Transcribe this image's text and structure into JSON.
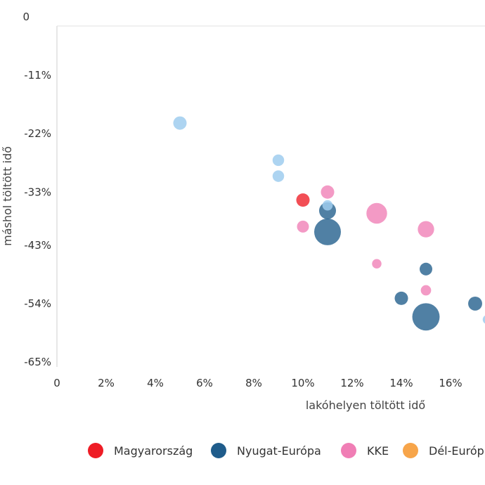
{
  "chart_data": {
    "type": "scatter",
    "title": "",
    "xlabel": "lakóhelyen töltött idő",
    "ylabel": "máshol töltött idő",
    "xlim": [
      0,
      17.5
    ],
    "ylim": [
      -0.66,
      0
    ],
    "x_ticks": [
      0,
      2,
      4,
      6,
      8,
      10,
      12,
      14,
      16
    ],
    "x_tick_labels": [
      "0",
      "2%",
      "4%",
      "6%",
      "8%",
      "10%",
      "12%",
      "14%",
      "16%"
    ],
    "y_ticks": [
      0,
      -0.11,
      -0.22,
      -0.33,
      -0.43,
      -0.54,
      -0.65
    ],
    "y_tick_labels": [
      "0",
      "-11%",
      "-22%",
      "-33%",
      "-43%",
      "-54%",
      "-65%"
    ],
    "grid": false,
    "legend_position": "bottom",
    "series": [
      {
        "name": "Magyarország",
        "color": "#ee1c25",
        "points": [
          {
            "x": 10,
            "y": -0.345,
            "size": 1
          }
        ]
      },
      {
        "name": "Nyugat-Európa",
        "color": "#1f5c8b",
        "points": [
          {
            "x": 11,
            "y": -0.365,
            "size": 1.6
          },
          {
            "x": 11,
            "y": -0.405,
            "size": 4
          },
          {
            "x": 15,
            "y": -0.475,
            "size": 0.9
          },
          {
            "x": 14,
            "y": -0.53,
            "size": 1
          },
          {
            "x": 15,
            "y": -0.565,
            "size": 4.2
          },
          {
            "x": 17,
            "y": -0.54,
            "size": 1.1
          }
        ]
      },
      {
        "name": "KKE",
        "color": "#f07eb5",
        "points": [
          {
            "x": 11,
            "y": -0.33,
            "size": 1
          },
          {
            "x": 13,
            "y": -0.37,
            "size": 2.4
          },
          {
            "x": 10,
            "y": -0.395,
            "size": 0.8
          },
          {
            "x": 15,
            "y": -0.4,
            "size": 1.5
          },
          {
            "x": 13,
            "y": -0.465,
            "size": 0.5
          },
          {
            "x": 15,
            "y": -0.515,
            "size": 0.6
          }
        ]
      },
      {
        "name": "Dél-Európa",
        "color": "#f7a54a",
        "points": []
      },
      {
        "name": "",
        "color": "#9fcdee",
        "points": [
          {
            "x": 5,
            "y": -0.2,
            "size": 1
          },
          {
            "x": 9,
            "y": -0.27,
            "size": 0.75
          },
          {
            "x": 9,
            "y": -0.3,
            "size": 0.75
          },
          {
            "x": 11,
            "y": -0.355,
            "size": 0.6
          },
          {
            "x": 17.5,
            "y": -0.57,
            "size": 0.5
          }
        ]
      }
    ],
    "legend": [
      {
        "label": "Magyarország",
        "color": "#ee1c25"
      },
      {
        "label": "Nyugat-Európa",
        "color": "#1f5c8b"
      },
      {
        "label": "KKE",
        "color": "#f07eb5"
      },
      {
        "label": "Dél-Európ",
        "color": "#f7a54a"
      }
    ]
  }
}
